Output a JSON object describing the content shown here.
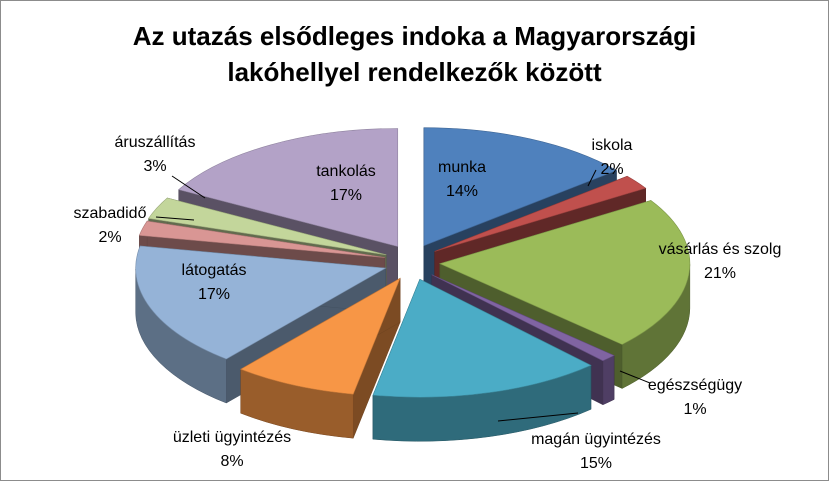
{
  "chart_data": {
    "type": "pie",
    "style": "exploded-3d",
    "title_lines": [
      "Az utazás elsődleges indoka a Magyarországi",
      "lakóhellyel rendelkezők között"
    ],
    "legend": "none",
    "slices": [
      {
        "label": "munka",
        "value": 14,
        "value_label": "14%",
        "color": "#4f81bd"
      },
      {
        "label": "iskola",
        "value": 2,
        "value_label": "2%",
        "color": "#c0504d"
      },
      {
        "label": "vásárlás és szolg",
        "value": 21,
        "value_label": "21%",
        "color": "#9bbb59"
      },
      {
        "label": "egészségügy",
        "value": 1,
        "value_label": "1%",
        "color": "#8064a2"
      },
      {
        "label": "magán ügyintézés",
        "value": 15,
        "value_label": "15%",
        "color": "#4bacc6"
      },
      {
        "label": "üzleti ügyintézés",
        "value": 8,
        "value_label": "8%",
        "color": "#f79646"
      },
      {
        "label": "látogatás",
        "value": 17,
        "value_label": "17%",
        "color": "#95b3d7"
      },
      {
        "label": "szabadidő",
        "value": 2,
        "value_label": "2%",
        "color": "#d99694"
      },
      {
        "label": "áruszállítás",
        "value": 3,
        "value_label": "3%",
        "color": "#c3d69b"
      },
      {
        "label": "tankolás",
        "value": 17,
        "value_label": "17%",
        "color": "#b3a2c7"
      }
    ]
  }
}
